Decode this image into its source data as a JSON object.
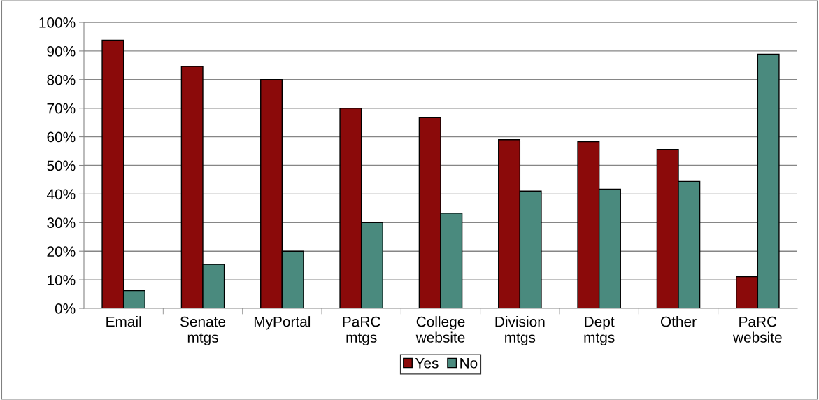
{
  "chart_data": {
    "type": "bar",
    "categories": [
      "Email",
      "Senate\nmtgs",
      "MyPortal",
      "PaRC\nmtgs",
      "College\nwebsite",
      "Division\nmtgs",
      "Dept\nmtgs",
      "Other",
      "PaRC\nwebsite"
    ],
    "series": [
      {
        "name": "Yes",
        "color": "#8b0a0a",
        "values": [
          93.8,
          84.6,
          80,
          70,
          66.7,
          59,
          58.3,
          55.6,
          11.1
        ]
      },
      {
        "name": "No",
        "color": "#4a8a7e",
        "values": [
          6.2,
          15.4,
          20,
          30,
          33.3,
          41,
          41.7,
          44.4,
          88.9
        ]
      }
    ],
    "ylim": [
      0,
      100
    ],
    "yticks": [
      {
        "value": 0,
        "label": "0%"
      },
      {
        "value": 10,
        "label": "10%"
      },
      {
        "value": 20,
        "label": "20%"
      },
      {
        "value": 30,
        "label": "30%"
      },
      {
        "value": 40,
        "label": "40%"
      },
      {
        "value": 50,
        "label": "50%"
      },
      {
        "value": 60,
        "label": "60%"
      },
      {
        "value": 70,
        "label": "70%"
      },
      {
        "value": 80,
        "label": "80%"
      },
      {
        "value": 90,
        "label": "90%"
      },
      {
        "value": 100,
        "label": "100%"
      }
    ],
    "grid": "y",
    "legend": "bottom"
  }
}
